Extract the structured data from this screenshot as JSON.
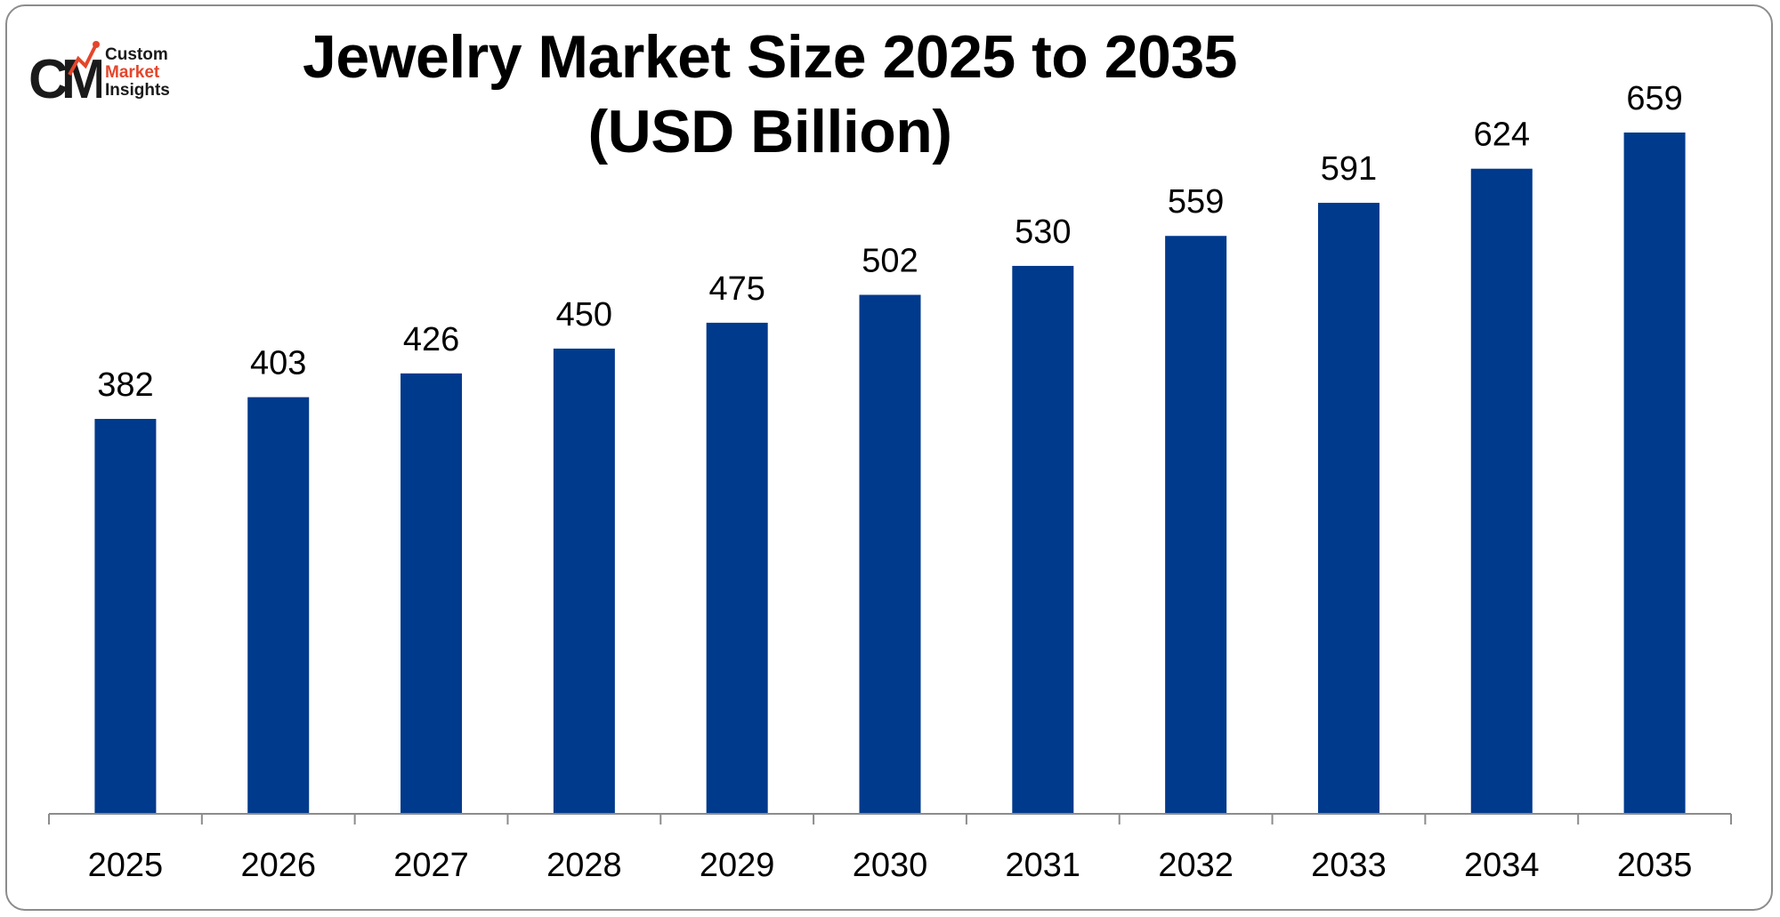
{
  "brand": {
    "mark": "CM",
    "line1": "Custom",
    "line2": "Market",
    "line3": "Insights",
    "accent_color": "#e4462b",
    "dark_color": "#1a1a1a"
  },
  "chart_data": {
    "type": "bar",
    "title_line1": "Jewelry Market Size 2025 to 2035",
    "title_line2": "(USD Billion)",
    "categories": [
      "2025",
      "2026",
      "2027",
      "2028",
      "2029",
      "2030",
      "2031",
      "2032",
      "2033",
      "2034",
      "2035"
    ],
    "values": [
      382,
      403,
      426,
      450,
      475,
      502,
      530,
      559,
      591,
      624,
      659
    ],
    "bar_color": "#003a8c",
    "ylim": [
      0,
      700
    ],
    "grid": false,
    "legend": "none",
    "data_labels": true
  }
}
